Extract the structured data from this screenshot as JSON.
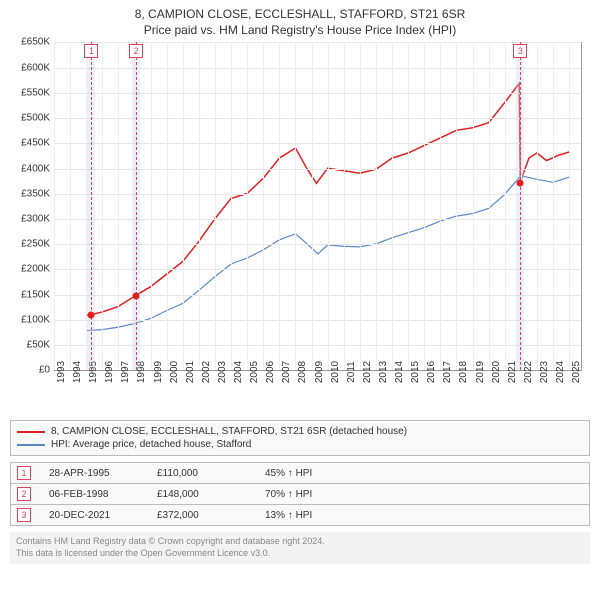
{
  "title_line1": "8, CAMPION CLOSE, ECCLESHALL, STAFFORD, ST21 6SR",
  "title_line2": "Price paid vs. HM Land Registry's House Price Index (HPI)",
  "title_fontsize": 12,
  "chart": {
    "type": "line",
    "background_color": "#ffffff",
    "grid_color": "#e6e6e6",
    "xgrid_color": "#eeeeee",
    "axis_color": "#999999",
    "label_fontsize": 10,
    "xlim": [
      1993,
      2025.8
    ],
    "ylim": [
      0,
      650000
    ],
    "ytick_step": 50000,
    "yticks": [
      {
        "v": 0,
        "label": "£0"
      },
      {
        "v": 50000,
        "label": "£50K"
      },
      {
        "v": 100000,
        "label": "£100K"
      },
      {
        "v": 150000,
        "label": "£150K"
      },
      {
        "v": 200000,
        "label": "£200K"
      },
      {
        "v": 250000,
        "label": "£250K"
      },
      {
        "v": 300000,
        "label": "£300K"
      },
      {
        "v": 350000,
        "label": "£350K"
      },
      {
        "v": 400000,
        "label": "£400K"
      },
      {
        "v": 450000,
        "label": "£450K"
      },
      {
        "v": 500000,
        "label": "£500K"
      },
      {
        "v": 550000,
        "label": "£550K"
      },
      {
        "v": 600000,
        "label": "£600K"
      },
      {
        "v": 650000,
        "label": "£650K"
      }
    ],
    "xticks": [
      1993,
      1994,
      1995,
      1996,
      1997,
      1998,
      1999,
      2000,
      2001,
      2002,
      2003,
      2004,
      2005,
      2006,
      2007,
      2008,
      2009,
      2010,
      2011,
      2012,
      2013,
      2014,
      2015,
      2016,
      2017,
      2018,
      2019,
      2020,
      2021,
      2022,
      2023,
      2024,
      2025
    ],
    "shaded_ranges": [
      {
        "from": 1995.05,
        "to": 1995.55,
        "color": "rgba(200,215,235,0.35)"
      },
      {
        "from": 1997.85,
        "to": 1998.35,
        "color": "rgba(200,215,235,0.35)"
      },
      {
        "from": 2021.7,
        "to": 2022.2,
        "color": "rgba(200,215,235,0.35)"
      }
    ],
    "vlines": [
      {
        "x": 1995.32,
        "color": "#d9435f"
      },
      {
        "x": 1998.1,
        "color": "#d9435f"
      },
      {
        "x": 2021.97,
        "color": "#d9435f"
      }
    ],
    "markers": [
      {
        "n": "1",
        "x": 1995.32,
        "color": "#d9435f"
      },
      {
        "n": "2",
        "x": 1998.1,
        "color": "#d9435f"
      },
      {
        "n": "3",
        "x": 2021.97,
        "color": "#d9435f"
      }
    ],
    "series": [
      {
        "name": "price_paid",
        "label": "8, CAMPION CLOSE, ECCLESHALL, STAFFORD, ST21 6SR (detached house)",
        "color": "#e02020",
        "line_width": 1.5,
        "points_marker_color": "#e02020",
        "data": [
          [
            1995.0,
            108000
          ],
          [
            1995.32,
            110000
          ],
          [
            1996.0,
            115000
          ],
          [
            1997.0,
            126000
          ],
          [
            1998.1,
            148000
          ],
          [
            1999.0,
            165000
          ],
          [
            2000.0,
            190000
          ],
          [
            2001.0,
            215000
          ],
          [
            2002.0,
            255000
          ],
          [
            2003.0,
            300000
          ],
          [
            2004.0,
            340000
          ],
          [
            2005.0,
            350000
          ],
          [
            2006.0,
            380000
          ],
          [
            2007.0,
            420000
          ],
          [
            2008.0,
            440000
          ],
          [
            2008.7,
            400000
          ],
          [
            2009.3,
            370000
          ],
          [
            2010.0,
            400000
          ],
          [
            2011.0,
            395000
          ],
          [
            2012.0,
            390000
          ],
          [
            2013.0,
            398000
          ],
          [
            2014.0,
            420000
          ],
          [
            2015.0,
            430000
          ],
          [
            2016.0,
            445000
          ],
          [
            2017.0,
            460000
          ],
          [
            2018.0,
            475000
          ],
          [
            2019.0,
            480000
          ],
          [
            2020.0,
            490000
          ],
          [
            2021.0,
            530000
          ],
          [
            2021.9,
            568000
          ],
          [
            2021.97,
            372000
          ],
          [
            2022.5,
            420000
          ],
          [
            2023.0,
            430000
          ],
          [
            2023.6,
            415000
          ],
          [
            2024.3,
            425000
          ],
          [
            2025.0,
            432000
          ]
        ],
        "sale_points": [
          [
            1995.32,
            110000
          ],
          [
            1998.1,
            148000
          ],
          [
            2021.97,
            372000
          ]
        ]
      },
      {
        "name": "hpi",
        "label": "HPI: Average price, detached house, Stafford",
        "color": "#5b87c7",
        "line_width": 1.2,
        "data": [
          [
            1995.0,
            78000
          ],
          [
            1996.0,
            80000
          ],
          [
            1997.0,
            85000
          ],
          [
            1998.0,
            92000
          ],
          [
            1999.0,
            102000
          ],
          [
            2000.0,
            118000
          ],
          [
            2001.0,
            132000
          ],
          [
            2002.0,
            158000
          ],
          [
            2003.0,
            185000
          ],
          [
            2004.0,
            210000
          ],
          [
            2005.0,
            222000
          ],
          [
            2006.0,
            238000
          ],
          [
            2007.0,
            258000
          ],
          [
            2008.0,
            270000
          ],
          [
            2008.8,
            248000
          ],
          [
            2009.4,
            230000
          ],
          [
            2010.0,
            248000
          ],
          [
            2011.0,
            245000
          ],
          [
            2012.0,
            244000
          ],
          [
            2013.0,
            250000
          ],
          [
            2014.0,
            262000
          ],
          [
            2015.0,
            272000
          ],
          [
            2016.0,
            282000
          ],
          [
            2017.0,
            295000
          ],
          [
            2018.0,
            305000
          ],
          [
            2019.0,
            310000
          ],
          [
            2020.0,
            320000
          ],
          [
            2021.0,
            348000
          ],
          [
            2022.0,
            385000
          ],
          [
            2023.0,
            378000
          ],
          [
            2024.0,
            372000
          ],
          [
            2025.0,
            382000
          ]
        ]
      }
    ]
  },
  "legend": {
    "rows": [
      {
        "color": "#e02020",
        "label": "8, CAMPION CLOSE, ECCLESHALL, STAFFORD, ST21 6SR (detached house)"
      },
      {
        "color": "#5b87c7",
        "label": "HPI: Average price, detached house, Stafford"
      }
    ]
  },
  "marker_rows": [
    {
      "n": "1",
      "color": "#d9435f",
      "date": "28-APR-1995",
      "price": "£110,000",
      "delta": "45%",
      "arrow": "↑",
      "suffix": "HPI"
    },
    {
      "n": "2",
      "color": "#d9435f",
      "date": "06-FEB-1998",
      "price": "£148,000",
      "delta": "70%",
      "arrow": "↑",
      "suffix": "HPI"
    },
    {
      "n": "3",
      "color": "#d9435f",
      "date": "20-DEC-2021",
      "price": "£372,000",
      "delta": "13%",
      "arrow": "↑",
      "suffix": "HPI"
    }
  ],
  "footer_line1": "Contains HM Land Registry data © Crown copyright and database right 2024.",
  "footer_line2": "This data is licensed under the Open Government Licence v3.0."
}
